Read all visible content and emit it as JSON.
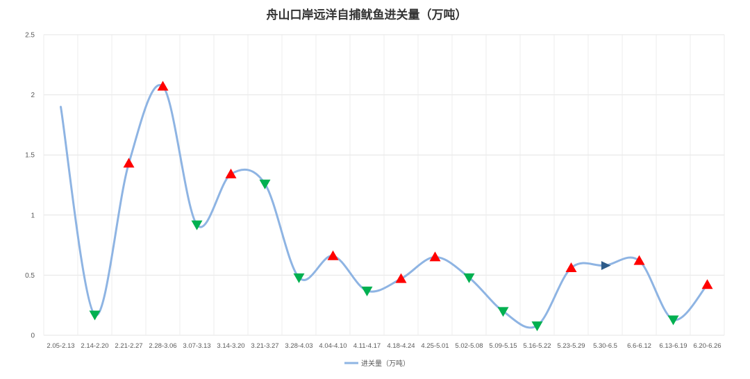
{
  "chart_data": {
    "type": "line",
    "title": "舟山口岸远洋自捕鱿鱼进关量（万吨）",
    "xlabel": "",
    "ylabel": "",
    "ylim": [
      0,
      2.5
    ],
    "yticks": [
      "0",
      "0.5",
      "1",
      "1.5",
      "2",
      "2.5"
    ],
    "grid": true,
    "legend_position": "bottom",
    "categories": [
      "2.05-2.13",
      "2.14-2.20",
      "2.21-2.27",
      "2.28-3.06",
      "3.07-3.13",
      "3.14-3.20",
      "3.21-3.27",
      "3.28-4.03",
      "4.04-4.10",
      "4.11-4.17",
      "4.18-4.24",
      "4.25-5.01",
      "5.02-5.08",
      "5.09-5.15",
      "5.16-5.22",
      "5.23-5.29",
      "5.30-6.5",
      "6.6-6.12",
      "6.13-6.19",
      "6.20-6.26"
    ],
    "series": [
      {
        "name": "进关量（万吨）",
        "color": "#8eb4e3",
        "values": [
          1.9,
          0.17,
          1.43,
          2.07,
          0.92,
          1.34,
          1.26,
          0.48,
          0.66,
          0.37,
          0.47,
          0.65,
          0.48,
          0.2,
          0.08,
          0.56,
          0.58,
          0.62,
          0.13,
          0.42
        ],
        "markers": [
          "none",
          "down",
          "up",
          "up",
          "down",
          "up",
          "down",
          "down",
          "up",
          "down",
          "up",
          "up",
          "down",
          "down",
          "down",
          "up",
          "flat",
          "up",
          "down",
          "up"
        ]
      }
    ],
    "marker_colors": {
      "up": "#ff0000",
      "down": "#00b050",
      "flat": "#2e5c8a"
    }
  }
}
